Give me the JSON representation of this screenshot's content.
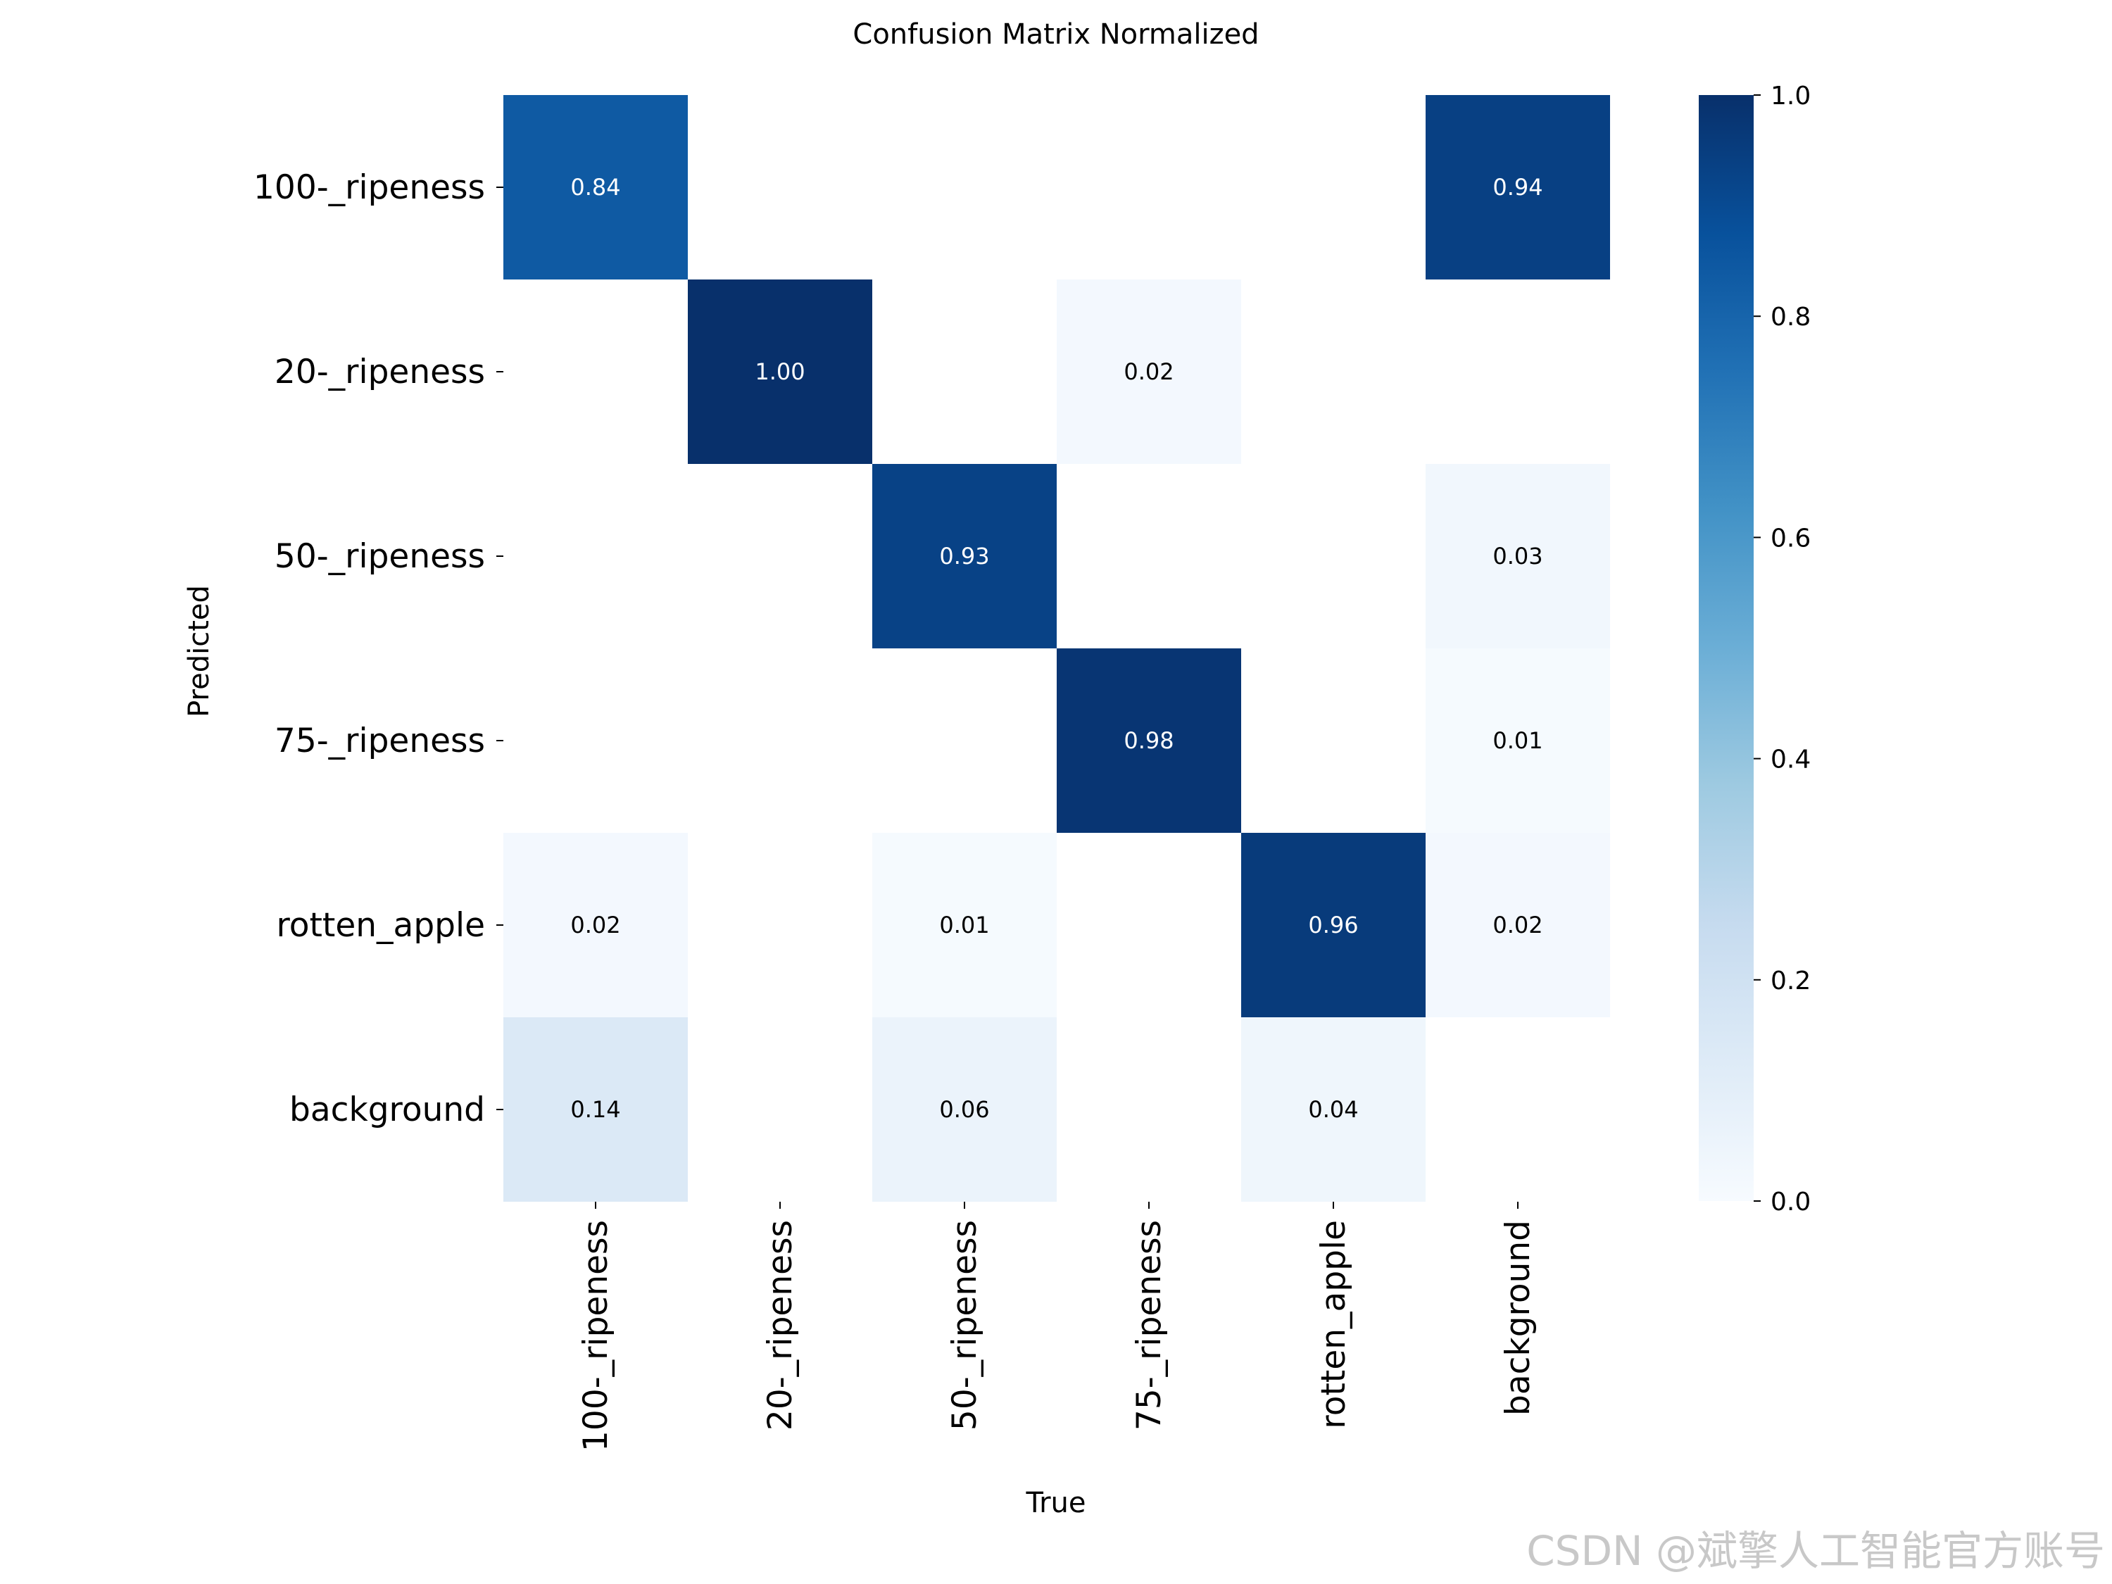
{
  "chart_data": {
    "type": "heatmap",
    "title": "Confusion Matrix Normalized",
    "xlabel": "True",
    "ylabel": "Predicted",
    "x_categories": [
      "100-_ripeness",
      "20-_ripeness",
      "50-_ripeness",
      "75-_ripeness",
      "rotten_apple",
      "background"
    ],
    "y_categories": [
      "100-_ripeness",
      "20-_ripeness",
      "50-_ripeness",
      "75-_ripeness",
      "rotten_apple",
      "background"
    ],
    "values": [
      [
        0.84,
        null,
        null,
        null,
        null,
        0.94
      ],
      [
        null,
        1.0,
        null,
        0.02,
        null,
        null
      ],
      [
        null,
        null,
        0.93,
        null,
        null,
        0.03
      ],
      [
        null,
        null,
        null,
        0.98,
        null,
        0.01
      ],
      [
        0.02,
        null,
        0.01,
        null,
        0.96,
        0.02
      ],
      [
        0.14,
        null,
        0.06,
        null,
        0.04,
        null
      ]
    ],
    "value_labels": [
      [
        "0.84",
        "",
        "",
        "",
        "",
        "0.94"
      ],
      [
        "",
        "1.00",
        "",
        "0.02",
        "",
        ""
      ],
      [
        "",
        "",
        "0.93",
        "",
        "",
        "0.03"
      ],
      [
        "",
        "",
        "",
        "0.98",
        "",
        "0.01"
      ],
      [
        "0.02",
        "",
        "0.01",
        "",
        "0.96",
        "0.02"
      ],
      [
        "0.14",
        "",
        "0.06",
        "",
        "0.04",
        ""
      ]
    ],
    "colorbar": {
      "range": [
        0.0,
        1.0
      ],
      "ticks": [
        "0.0",
        "0.2",
        "0.4",
        "0.6",
        "0.8",
        "1.0"
      ]
    },
    "colormap": "Blues",
    "grid": false,
    "legend": "colorbar-right"
  },
  "watermark": "CSDN @斌擎人工智能官方账号"
}
